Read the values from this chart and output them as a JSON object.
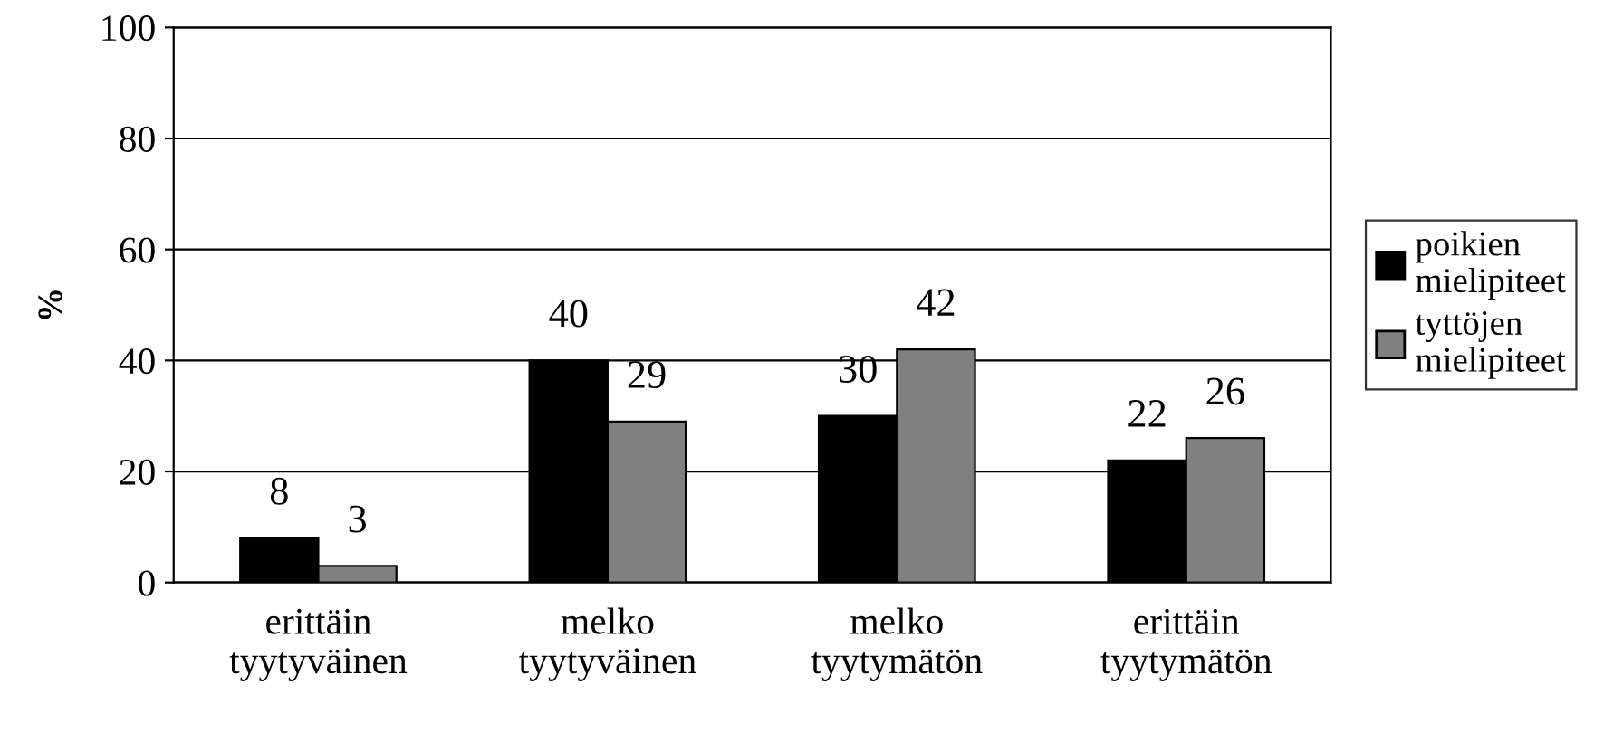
{
  "chart_data": {
    "type": "bar",
    "ylabel": "%",
    "categories": [
      "erittäin\ntyytyväinen",
      "melko\ntyytyväinen",
      "melko\ntyytymätön",
      "erittäin\ntyytymätön"
    ],
    "series": [
      {
        "name": "poikien\nmielipiteet",
        "color": "#000000",
        "values": [
          8,
          40,
          30,
          22
        ]
      },
      {
        "name": "tyttöjen\nmielipiteet",
        "color": "#808080",
        "values": [
          3,
          29,
          42,
          26
        ]
      }
    ],
    "ylim": [
      0,
      100
    ],
    "yticks": [
      0,
      20,
      40,
      60,
      80,
      100
    ],
    "grid": "y",
    "legend": "right",
    "data_labels": true
  }
}
